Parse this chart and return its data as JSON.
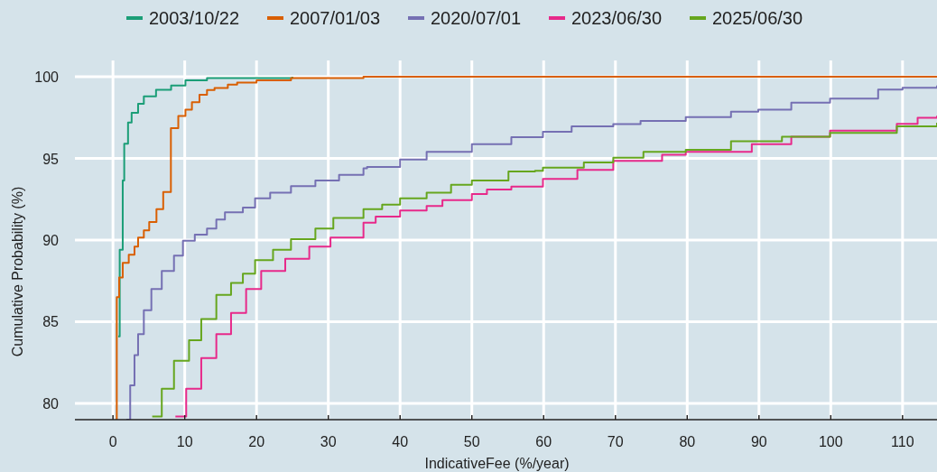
{
  "chart_data": {
    "type": "step",
    "xlabel": "IndicativeFee (%/year)",
    "ylabel": "Cumulative Probability (%)",
    "xlim": [
      -5.3,
      114.8
    ],
    "ylim": [
      79,
      101
    ],
    "xticks": [
      0,
      10,
      20,
      30,
      40,
      50,
      60,
      70,
      80,
      90,
      100,
      110
    ],
    "yticks": [
      80,
      85,
      90,
      95,
      100
    ],
    "grid": true,
    "legend": "top",
    "series": [
      {
        "name": "2003/10/22",
        "color": "#1b9e77",
        "x": [
          0.73,
          0.94,
          1.36,
          1.57,
          2.1,
          2.6,
          3.5,
          4.3,
          6.0,
          8.1,
          10.1,
          13.1,
          25
        ],
        "values": [
          84.1,
          89.4,
          93.65,
          95.9,
          97.2,
          97.8,
          98.35,
          98.8,
          99.2,
          99.46,
          99.78,
          99.92,
          100
        ]
      },
      {
        "name": "2007/01/03",
        "color": "#d95f02",
        "x": [
          0.53,
          0.53,
          0.86,
          1.36,
          2.2,
          3.0,
          3.5,
          4.3,
          5.05,
          6.06,
          7.0,
          8.07,
          9.1,
          10.1,
          11.0,
          12.05,
          13.1,
          14.15,
          16.0,
          17.3,
          20.0,
          24.8,
          34.9,
          114.8
        ],
        "values": [
          79,
          86.5,
          87.7,
          88.6,
          89.1,
          89.6,
          90.15,
          90.6,
          91.1,
          91.9,
          92.95,
          96.85,
          97.6,
          97.99,
          98.45,
          98.9,
          99.19,
          99.32,
          99.52,
          99.65,
          99.78,
          99.92,
          100,
          100
        ]
      },
      {
        "name": "2020/07/01",
        "color": "#7570b3",
        "x": [
          1.87,
          2.4,
          3.0,
          3.5,
          4.3,
          5.35,
          6.8,
          8.5,
          9.75,
          11.4,
          13.1,
          14.4,
          15.6,
          18.1,
          19.8,
          21.9,
          24.8,
          28.2,
          31.5,
          34.9,
          35.4,
          40.0,
          43.7,
          50.0,
          55.5,
          59.9,
          63.9,
          69.7,
          73.5,
          79.8,
          86.1,
          89.9,
          94.5,
          99.9,
          106.6,
          110,
          114.8
        ],
        "values": [
          79,
          81.1,
          82.95,
          84.24,
          85.7,
          87.0,
          88.1,
          89.04,
          89.96,
          90.33,
          90.7,
          91.26,
          91.7,
          91.99,
          92.55,
          92.9,
          93.3,
          93.65,
          94.0,
          94.4,
          94.48,
          94.94,
          95.4,
          95.87,
          96.3,
          96.64,
          96.97,
          97.1,
          97.3,
          97.53,
          97.86,
          97.99,
          98.41,
          98.67,
          99.22,
          99.33,
          99.46
        ]
      },
      {
        "name": "2023/06/30",
        "color": "#e7298a",
        "x": [
          8.7,
          10.2,
          12.3,
          14.4,
          16.45,
          18.55,
          20.65,
          24.0,
          27.35,
          30.3,
          34.9,
          36.6,
          40.0,
          43.7,
          45.9,
          50.0,
          52.1,
          55.5,
          59.9,
          64.7,
          69.7,
          76.5,
          79.8,
          89.0,
          94.5,
          99.9,
          109.2,
          112.1,
          114.8
        ],
        "values": [
          79.2,
          80.9,
          82.77,
          84.24,
          85.53,
          87.0,
          88.1,
          88.85,
          89.6,
          90.15,
          91.07,
          91.44,
          91.81,
          92.09,
          92.45,
          92.82,
          93.1,
          93.28,
          93.75,
          94.3,
          94.85,
          95.22,
          95.4,
          95.87,
          96.33,
          96.7,
          97.12,
          97.49,
          97.62
        ]
      },
      {
        "name": "2025/06/30",
        "color": "#66a61e",
        "x": [
          5.47,
          6.8,
          8.5,
          10.6,
          12.3,
          14.4,
          16.45,
          18.1,
          19.8,
          22.3,
          24.8,
          28.2,
          30.7,
          34.9,
          37.5,
          40.0,
          43.7,
          47.1,
          50.0,
          55.1,
          58.8,
          59.9,
          65.6,
          69.7,
          73.1,
          73.9,
          79.8,
          86.1,
          93.2,
          99.9,
          109.2,
          114.8
        ],
        "values": [
          79.2,
          80.9,
          82.6,
          83.87,
          85.17,
          86.64,
          87.38,
          87.94,
          88.77,
          89.41,
          90.06,
          90.7,
          91.35,
          91.9,
          92.17,
          92.55,
          92.9,
          93.38,
          93.65,
          94.2,
          94.24,
          94.43,
          94.76,
          95.04,
          95.04,
          95.4,
          95.53,
          96.05,
          96.33,
          96.57,
          96.97,
          97.19
        ]
      }
    ]
  }
}
